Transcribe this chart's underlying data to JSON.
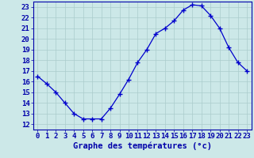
{
  "hours": [
    0,
    1,
    2,
    3,
    4,
    5,
    6,
    7,
    8,
    9,
    10,
    11,
    12,
    13,
    14,
    15,
    16,
    17,
    18,
    19,
    20,
    21,
    22,
    23
  ],
  "temps": [
    16.5,
    15.8,
    15.0,
    14.0,
    13.0,
    12.5,
    12.5,
    12.5,
    13.5,
    14.8,
    16.2,
    17.8,
    19.0,
    20.5,
    21.0,
    21.7,
    22.7,
    23.2,
    23.1,
    22.2,
    21.0,
    19.2,
    17.8,
    17.0
  ],
  "line_color": "#0000cc",
  "marker": "+",
  "bg_color": "#cce8e8",
  "grid_color": "#aacccc",
  "axis_color": "#0000aa",
  "xlabel": "Graphe des températures (°c)",
  "xlabel_fontsize": 7.5,
  "tick_fontsize": 6.5,
  "ylim": [
    11.5,
    23.5
  ],
  "yticks": [
    12,
    13,
    14,
    15,
    16,
    17,
    18,
    19,
    20,
    21,
    22,
    23
  ],
  "xticks": [
    0,
    1,
    2,
    3,
    4,
    5,
    6,
    7,
    8,
    9,
    10,
    11,
    12,
    13,
    14,
    15,
    16,
    17,
    18,
    19,
    20,
    21,
    22,
    23
  ]
}
